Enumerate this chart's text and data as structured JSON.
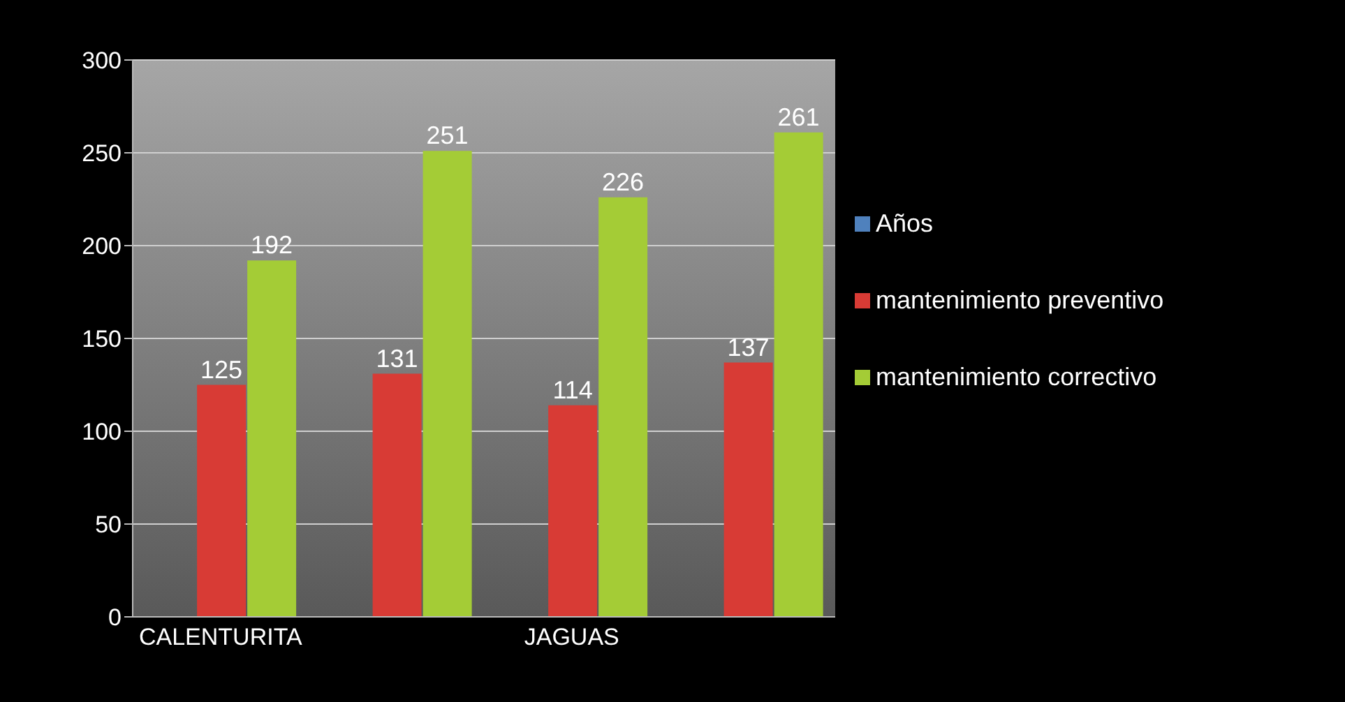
{
  "chart_data": {
    "type": "bar",
    "categories": [
      "CALENTURITA",
      null,
      "JAGUAS",
      null
    ],
    "series": [
      {
        "name": "Años",
        "color": "#4f81bd",
        "values": [
          null,
          null,
          null,
          null
        ]
      },
      {
        "name": "mantenimiento preventivo",
        "color": "#d83b35",
        "values": [
          125,
          131,
          114,
          137
        ]
      },
      {
        "name": "mantenimiento correctivo",
        "color": "#a4cc36",
        "values": [
          192,
          251,
          226,
          261
        ]
      }
    ],
    "ylim": [
      0,
      300
    ],
    "yticks": [
      0,
      50,
      100,
      150,
      200,
      250,
      300
    ],
    "grid": "y",
    "legend": "right",
    "data_labels": true
  }
}
